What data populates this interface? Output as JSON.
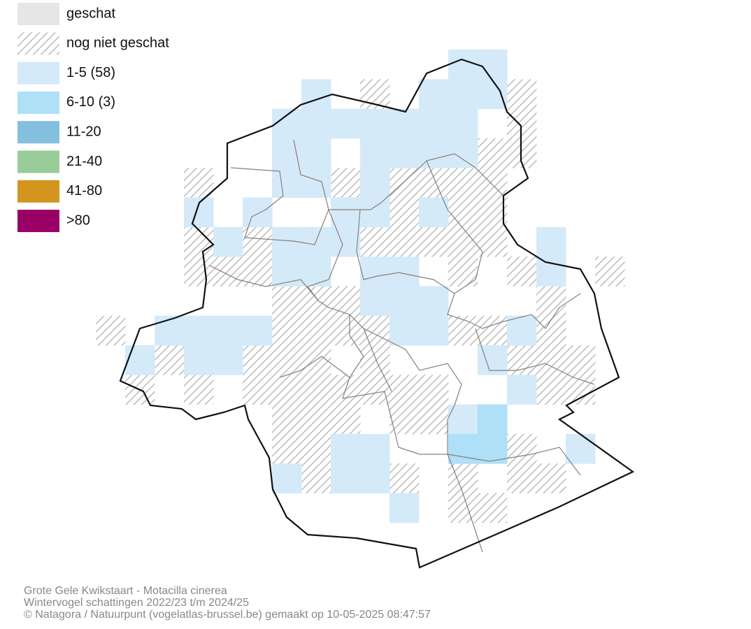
{
  "legend": [
    {
      "label": "geschat",
      "color": "#e6e6e6"
    },
    {
      "label": "nog niet geschat",
      "color": "hatch"
    },
    {
      "label": "1-5 (58)",
      "color": "#d4eaf9"
    },
    {
      "label": "6-10 (3)",
      "color": "#aee0f7"
    },
    {
      "label": "11-20",
      "color": "#84bfdf"
    },
    {
      "label": "21-40",
      "color": "#98cc98"
    },
    {
      "label": "41-80",
      "color": "#d4951e"
    },
    {
      "label": ">80",
      "color": "#990066"
    }
  ],
  "footer": [
    "Grote Gele Kwikstaart - Motacilla cinerea",
    "Wintervogel schattingen 2022/23 t/m 2024/25",
    "© Natagora / Natuurpunt (vogelatlas-brussel.be) gemaakt op 10-05-2025 08:47:57"
  ]
}
